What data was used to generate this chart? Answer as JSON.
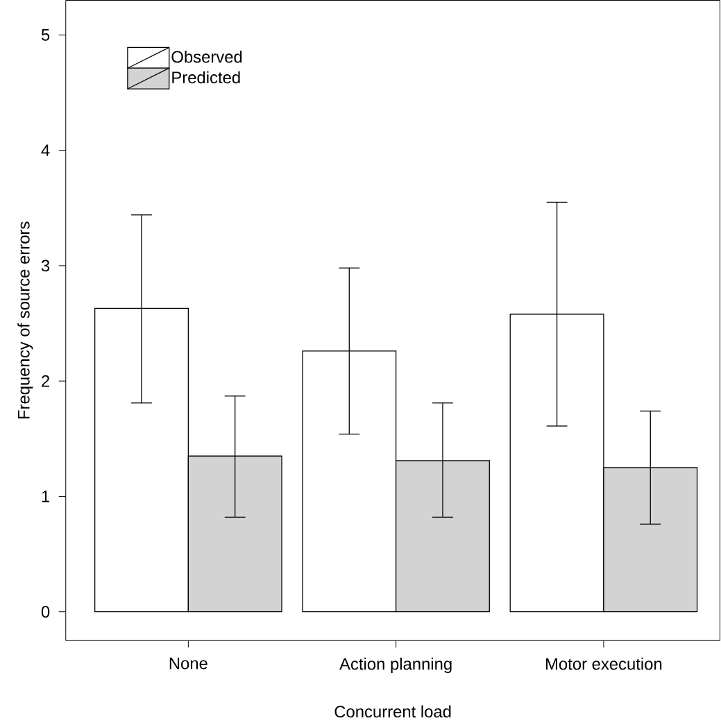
{
  "chart_data": {
    "type": "bar",
    "xlabel": "Concurrent load",
    "ylabel": "Frequency of source errors",
    "categories": [
      "None",
      "Action planning",
      "Motor execution"
    ],
    "series": [
      {
        "name": "Observed",
        "color": "#ffffff",
        "values": [
          2.63,
          2.26,
          2.58
        ],
        "errors": [
          [
            1.81,
            3.44
          ],
          [
            1.54,
            2.98
          ],
          [
            1.61,
            3.55
          ]
        ]
      },
      {
        "name": "Predicted",
        "color": "#d3d3d3",
        "values": [
          1.35,
          1.31,
          1.25
        ],
        "errors": [
          [
            0.82,
            1.87
          ],
          [
            0.82,
            1.81
          ],
          [
            0.76,
            1.74
          ]
        ]
      }
    ],
    "ylim": [
      -0.25,
      5.3
    ],
    "yticks": [
      0,
      1,
      2,
      3,
      4,
      5
    ],
    "legend": "top left",
    "grid": false
  }
}
